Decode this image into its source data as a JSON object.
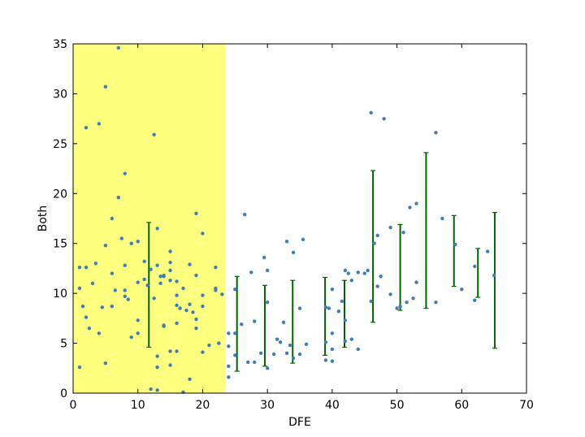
{
  "chart_data": {
    "type": "scatter",
    "xlabel": "DFE",
    "ylabel": "Both",
    "xlim": [
      0,
      70
    ],
    "ylim": [
      0,
      35
    ],
    "xticks": [
      0,
      10,
      20,
      30,
      40,
      50,
      60,
      70
    ],
    "yticks": [
      0,
      5,
      10,
      15,
      20,
      25,
      30,
      35
    ],
    "grid": false,
    "highlight_region": {
      "x_start": 0,
      "x_end": 23.5,
      "color": "#ffff80"
    },
    "colors": {
      "points": "#3f7fb5",
      "errorbars": "#006400"
    },
    "points": [
      [
        1,
        12.6
      ],
      [
        1,
        10.5
      ],
      [
        1,
        2.6
      ],
      [
        1.5,
        8.7
      ],
      [
        2,
        12.6
      ],
      [
        2,
        7.6
      ],
      [
        2,
        26.6
      ],
      [
        2.5,
        6.5
      ],
      [
        3,
        11
      ],
      [
        3.5,
        13
      ],
      [
        4,
        27
      ],
      [
        4,
        6
      ],
      [
        5,
        30.7
      ],
      [
        5,
        14.8
      ],
      [
        4.5,
        8.6
      ],
      [
        5,
        3
      ],
      [
        6,
        17.5
      ],
      [
        6,
        12
      ],
      [
        6,
        8.7
      ],
      [
        6.5,
        10.3
      ],
      [
        7,
        34.6
      ],
      [
        7,
        19.6
      ],
      [
        8,
        22
      ],
      [
        7.5,
        15.5
      ],
      [
        8,
        12.8
      ],
      [
        8,
        10.3
      ],
      [
        8,
        9.7
      ],
      [
        8.5,
        9.4
      ],
      [
        9,
        5.6
      ],
      [
        9,
        15
      ],
      [
        10,
        15.2
      ],
      [
        10,
        11.1
      ],
      [
        10,
        7.3
      ],
      [
        10,
        6
      ],
      [
        11,
        13.2
      ],
      [
        11,
        11.4
      ],
      [
        11.5,
        10.8
      ],
      [
        12,
        0.4
      ],
      [
        12,
        12.4
      ],
      [
        12.5,
        25.9
      ],
      [
        12.5,
        9.5
      ],
      [
        13,
        16.5
      ],
      [
        13,
        12.8
      ],
      [
        13,
        3.7
      ],
      [
        13,
        2.6
      ],
      [
        13,
        0.3
      ],
      [
        13.5,
        11.7
      ],
      [
        13.5,
        11
      ],
      [
        14,
        11.7
      ],
      [
        14,
        11.8
      ],
      [
        14,
        6.8
      ],
      [
        14,
        6.7
      ],
      [
        15,
        14.2
      ],
      [
        15,
        13.1
      ],
      [
        15,
        12.3
      ],
      [
        15,
        11.3
      ],
      [
        15,
        4.2
      ],
      [
        15,
        2.8
      ],
      [
        16,
        11.2
      ],
      [
        16,
        9.8
      ],
      [
        16,
        8.8
      ],
      [
        16,
        7
      ],
      [
        16,
        4.2
      ],
      [
        16.5,
        8.5
      ],
      [
        17,
        10.5
      ],
      [
        17,
        0.1
      ],
      [
        17.5,
        8.3
      ],
      [
        18,
        12.9
      ],
      [
        18,
        8.9
      ],
      [
        18,
        1.4
      ],
      [
        18.5,
        8.1
      ],
      [
        19,
        18
      ],
      [
        19,
        11.8
      ],
      [
        19,
        7.4
      ],
      [
        19,
        6.5
      ],
      [
        20,
        16
      ],
      [
        20,
        9.8
      ],
      [
        20,
        8.7
      ],
      [
        20,
        4.1
      ],
      [
        21,
        4.8
      ],
      [
        22,
        12.6
      ],
      [
        22,
        10.5
      ],
      [
        22,
        10.3
      ],
      [
        22.5,
        5
      ],
      [
        23,
        9.9
      ],
      [
        24,
        6
      ],
      [
        24,
        4.7
      ],
      [
        24,
        2.7
      ],
      [
        24,
        1.6
      ],
      [
        25,
        10.4
      ],
      [
        25,
        6
      ],
      [
        25,
        3.8
      ],
      [
        26,
        6.9
      ],
      [
        26.5,
        17.9
      ],
      [
        27,
        3.1
      ],
      [
        27.5,
        12.1
      ],
      [
        28,
        7.2
      ],
      [
        28,
        3.1
      ],
      [
        29,
        4
      ],
      [
        29.5,
        13.6
      ],
      [
        30,
        12.3
      ],
      [
        30,
        9.1
      ],
      [
        30,
        2.5
      ],
      [
        31,
        3.9
      ],
      [
        31.5,
        5.4
      ],
      [
        32,
        5.1
      ],
      [
        32.5,
        7.1
      ],
      [
        33,
        15.2
      ],
      [
        33,
        4
      ],
      [
        33.5,
        4.8
      ],
      [
        34,
        14.1
      ],
      [
        34,
        3.5
      ],
      [
        35,
        8.5
      ],
      [
        35,
        3.9
      ],
      [
        35.5,
        15.4
      ],
      [
        36,
        4.9
      ],
      [
        39,
        8.6
      ],
      [
        39,
        5.1
      ],
      [
        39,
        3.3
      ],
      [
        39.5,
        8.5
      ],
      [
        40,
        10.4
      ],
      [
        40,
        6
      ],
      [
        40,
        4.4
      ],
      [
        40,
        3.2
      ],
      [
        41,
        8.2
      ],
      [
        41.5,
        9.2
      ],
      [
        42,
        12.3
      ],
      [
        42,
        7.3
      ],
      [
        42,
        5.2
      ],
      [
        42.5,
        12
      ],
      [
        43,
        11.3
      ],
      [
        43,
        5.4
      ],
      [
        44,
        12.1
      ],
      [
        44,
        4.4
      ],
      [
        45,
        12
      ],
      [
        45.5,
        12.3
      ],
      [
        46,
        28.1
      ],
      [
        46,
        9.2
      ],
      [
        46.5,
        15
      ],
      [
        47,
        15.8
      ],
      [
        47,
        10.7
      ],
      [
        47.5,
        11.7
      ],
      [
        48,
        27.5
      ],
      [
        49,
        16.6
      ],
      [
        49,
        9.9
      ],
      [
        50,
        8.5
      ],
      [
        50.5,
        8.7
      ],
      [
        51,
        16.1
      ],
      [
        51.5,
        9.1
      ],
      [
        52,
        18.6
      ],
      [
        52.5,
        9.5
      ],
      [
        53,
        19
      ],
      [
        53,
        11.1
      ],
      [
        56,
        26.1
      ],
      [
        56,
        9.1
      ],
      [
        57,
        17.5
      ],
      [
        59,
        14.9
      ],
      [
        60,
        10.4
      ],
      [
        62,
        12.7
      ],
      [
        62,
        9.3
      ],
      [
        64,
        14.2
      ],
      [
        65,
        11.8
      ]
    ],
    "errorbars": [
      {
        "x": 11.7,
        "y_low": 4.6,
        "y_high": 17.1
      },
      {
        "x": 25.3,
        "y_low": 2.2,
        "y_high": 11.7
      },
      {
        "x": 29.6,
        "y_low": 2.7,
        "y_high": 10.8
      },
      {
        "x": 33.9,
        "y_low": 3,
        "y_high": 11.3
      },
      {
        "x": 38.9,
        "y_low": 3.8,
        "y_high": 11.6
      },
      {
        "x": 41.9,
        "y_low": 4.6,
        "y_high": 11.3
      },
      {
        "x": 46.3,
        "y_low": 7.1,
        "y_high": 22.3
      },
      {
        "x": 50.5,
        "y_low": 8.3,
        "y_high": 16.9
      },
      {
        "x": 54.5,
        "y_low": 8.5,
        "y_high": 24.1
      },
      {
        "x": 58.8,
        "y_low": 10.7,
        "y_high": 17.8
      },
      {
        "x": 62.5,
        "y_low": 9.6,
        "y_high": 14.5
      },
      {
        "x": 65.1,
        "y_low": 4.5,
        "y_high": 18.1
      }
    ]
  }
}
